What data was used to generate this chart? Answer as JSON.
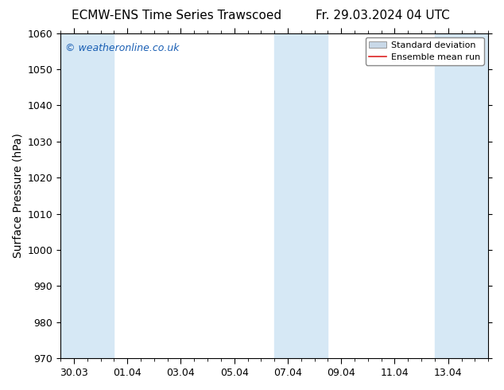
{
  "title_left": "ECMW-ENS Time Series Trawscoed",
  "title_right": "Fr. 29.03.2024 04 UTC",
  "ylabel": "Surface Pressure (hPa)",
  "ylim": [
    970,
    1060
  ],
  "yticks": [
    970,
    980,
    990,
    1000,
    1010,
    1020,
    1030,
    1040,
    1050,
    1060
  ],
  "xlim": [
    0,
    16
  ],
  "xtick_labels": [
    "30.03",
    "01.04",
    "03.04",
    "05.04",
    "07.04",
    "09.04",
    "11.04",
    "13.04"
  ],
  "xtick_positions": [
    0.5,
    2.5,
    4.5,
    6.5,
    8.5,
    10.5,
    12.5,
    14.5
  ],
  "shaded_bands": [
    {
      "x_start": 0.0,
      "x_end": 2.0
    },
    {
      "x_start": 8.0,
      "x_end": 10.0
    },
    {
      "x_start": 14.0,
      "x_end": 16.0
    }
  ],
  "shaded_color": "#d6e8f5",
  "background_color": "#ffffff",
  "watermark_text": "© weatheronline.co.uk",
  "watermark_color": "#1a5fb4",
  "legend_std_dev_color": "#c8d8e8",
  "legend_std_dev_edge": "#999999",
  "legend_mean_color": "#dd2222",
  "title_fontsize": 11,
  "tick_label_fontsize": 9,
  "ylabel_fontsize": 10,
  "watermark_fontsize": 9,
  "legend_fontsize": 8
}
